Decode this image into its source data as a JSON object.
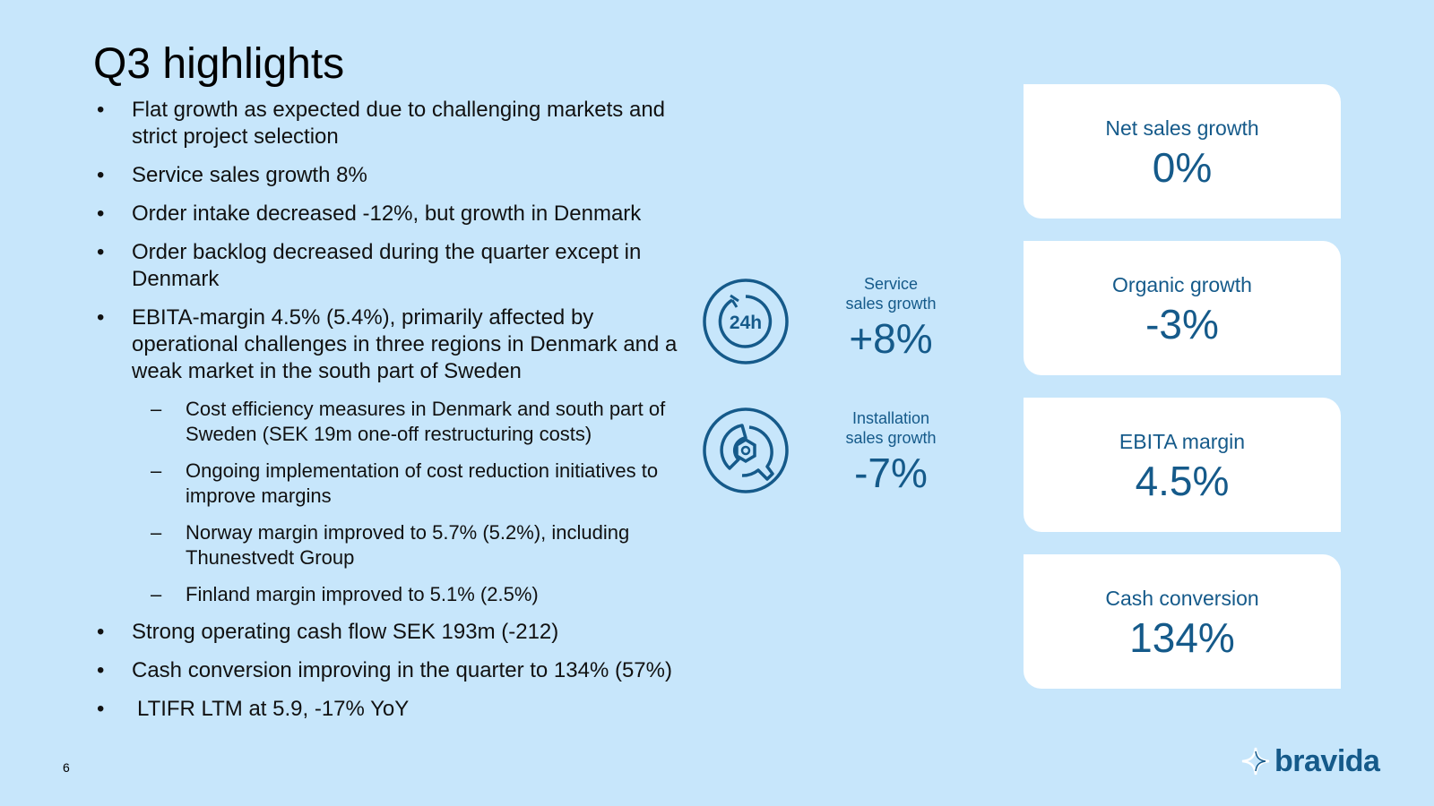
{
  "slide": {
    "title": "Q3 highlights",
    "page_number": "6"
  },
  "bullets": [
    {
      "marker": "•",
      "text": "Flat growth as expected due to challenging markets and strict project selection"
    },
    {
      "marker": "•",
      "text": "Service sales growth 8%"
    },
    {
      "marker": "•",
      "text": "Order intake decreased -12%, but growth in Denmark"
    },
    {
      "marker": "•",
      "text": "Order backlog decreased during the quarter except in Denmark"
    },
    {
      "marker": "•",
      "text": "EBITA-margin 4.5% (5.4%), primarily affected by operational challenges in three regions in Denmark and a weak market in the south part of Sweden"
    }
  ],
  "sub_bullets": [
    {
      "marker": "–",
      "text": "Cost efficiency measures in Denmark and south part of Sweden (SEK 19m one-off restructuring costs)"
    },
    {
      "marker": "–",
      "text": "Ongoing implementation of cost reduction initiatives to improve margins"
    },
    {
      "marker": "–",
      "text": "Norway margin improved to 5.7% (5.2%), including Thunestvedt Group"
    },
    {
      "marker": "–",
      "text": "Finland margin improved to 5.1% (2.5%)"
    }
  ],
  "bullets_after": [
    {
      "marker": "•",
      "text": "Strong operating cash flow SEK 193m (-212)"
    },
    {
      "marker": "•",
      "text": "Cash conversion improving in the quarter to 134% (57%)"
    },
    {
      "marker": "•",
      "text": "LTIFR LTM at 5.9, -17% YoY"
    }
  ],
  "growth_metrics": {
    "service": {
      "label_line1": "Service",
      "label_line2": "sales growth",
      "value": "+8%",
      "icon": "24h-clock-icon",
      "icon_text": "24h"
    },
    "installation": {
      "label_line1": "Installation",
      "label_line2": "sales growth",
      "value": "-7%",
      "icon": "wrench-nut-icon"
    }
  },
  "kpi_cards": [
    {
      "label": "Net sales growth",
      "value": "0%"
    },
    {
      "label": "Organic growth",
      "value": "-3%"
    },
    {
      "label": "EBITA margin",
      "value": "4.5%"
    },
    {
      "label": "Cash conversion",
      "value": "134%"
    }
  ],
  "logo": {
    "text": "bravida",
    "icon": "star-logo-icon"
  },
  "colors": {
    "background": "#c7e6fb",
    "accent": "#155a8a",
    "card": "#ffffff"
  }
}
